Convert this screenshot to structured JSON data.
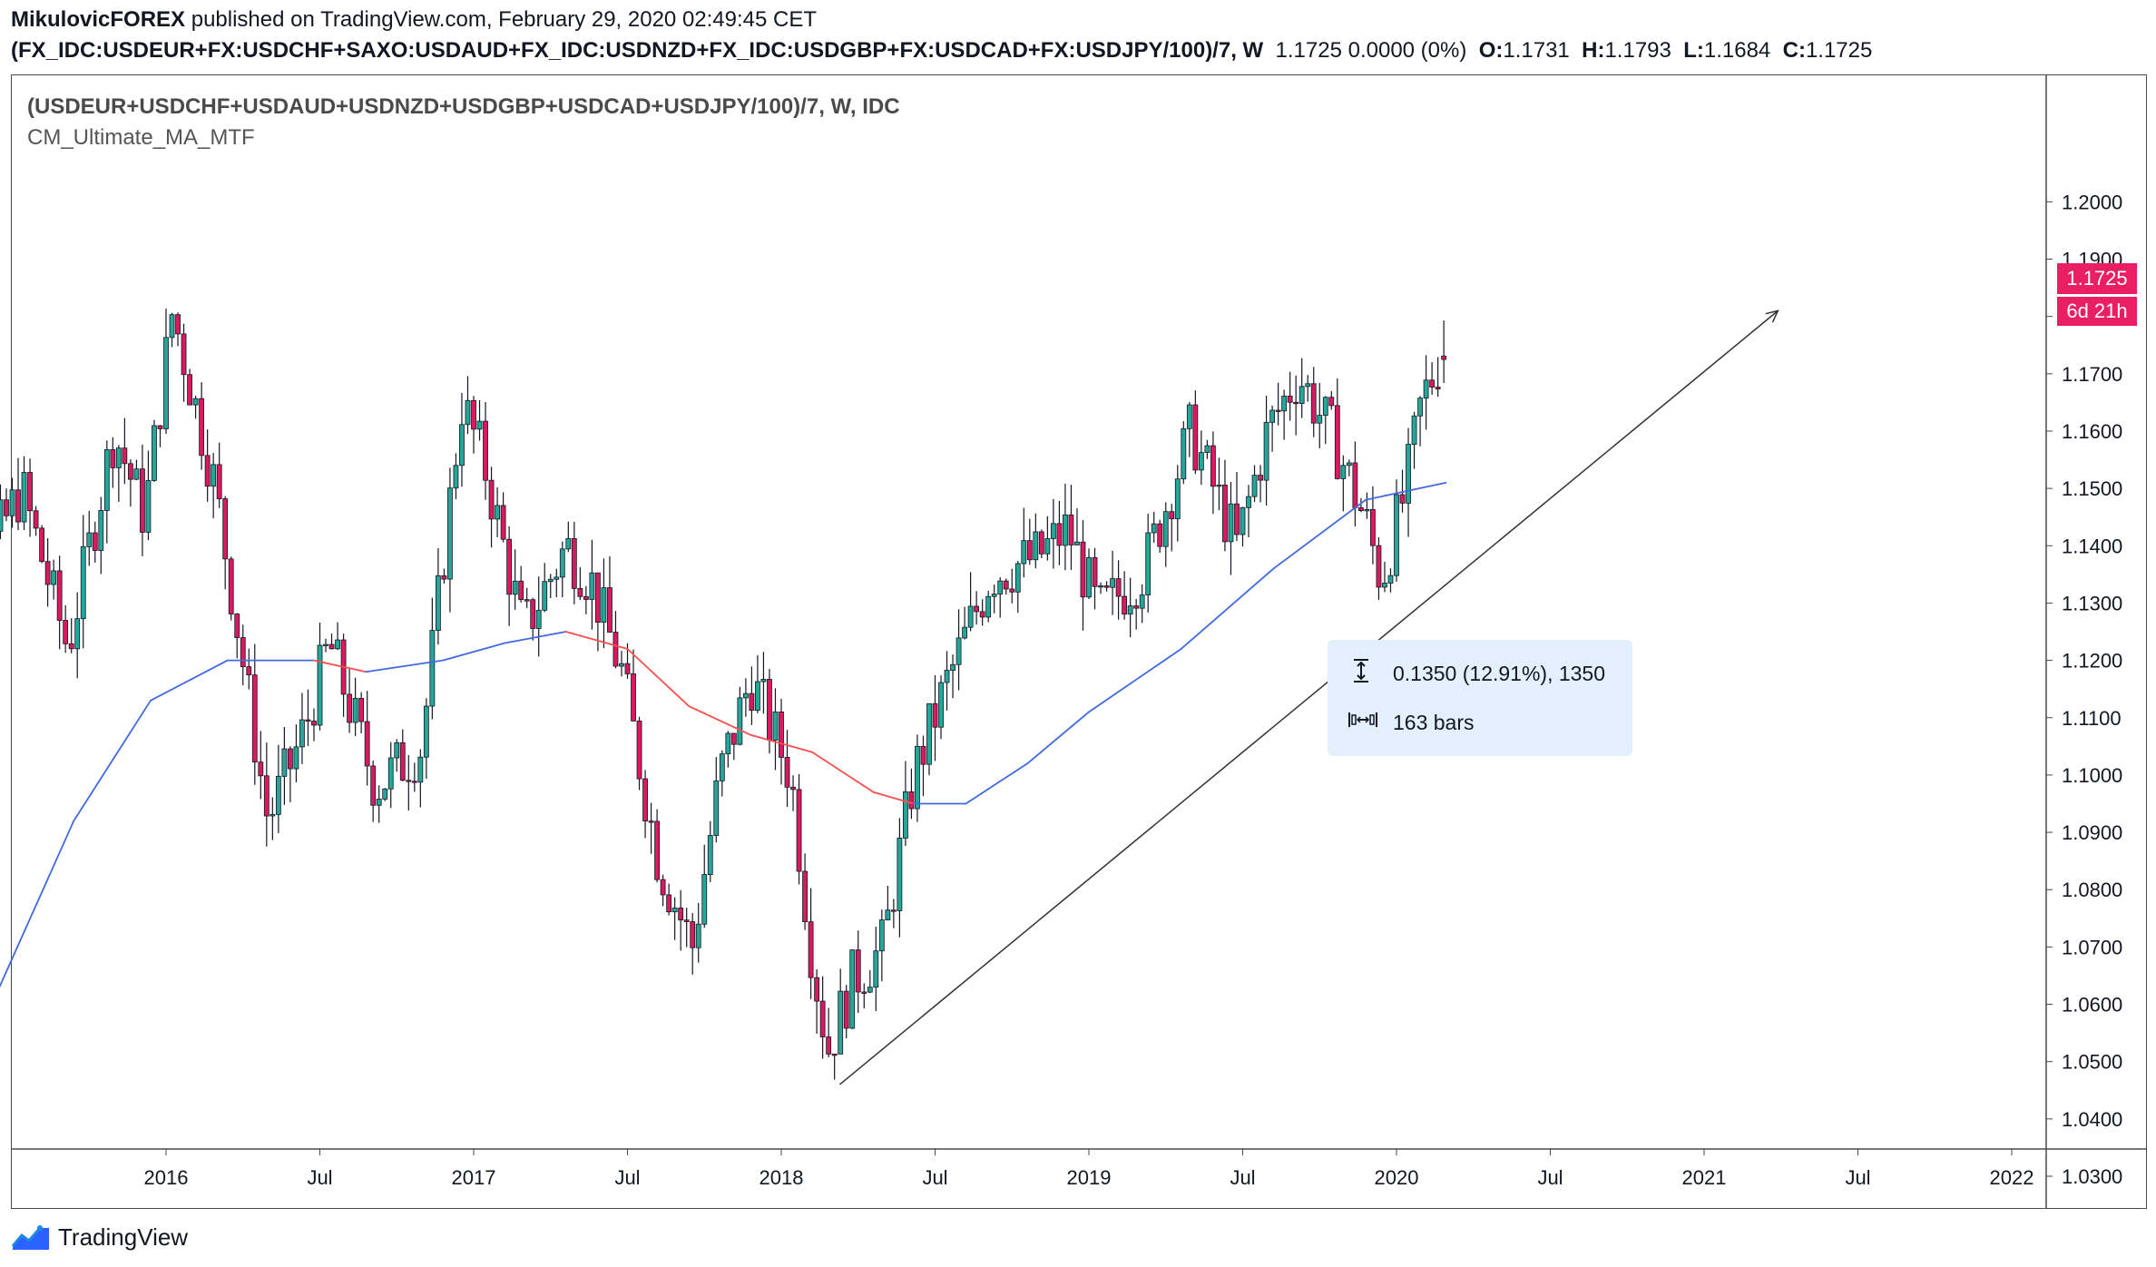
{
  "header": {
    "author": "MikulovicFOREX",
    "published": " published on TradingView.com, February 29, 2020 02:49:45 CET",
    "symbol": "(FX_IDC:USDEUR+FX:USDCHF+SAXO:USDAUD+FX_IDC:USDNZD+FX_IDC:USDGBP+FX:USDCAD+FX:USDJPY/100)/7, W",
    "change": "1.1725 0.0000 (0%)",
    "o_label": "O:",
    "o_value": "1.1731",
    "h_label": "H:",
    "h_value": "1.1793",
    "l_label": "L:",
    "l_value": "1.1684",
    "c_label": "C:",
    "c_value": "1.1725"
  },
  "legend": {
    "title": "(USDEUR+USDCHF+USDAUD+USDNZD+USDGBP+USDCAD+USDJPY/100)/7, W, IDC",
    "indicator": "CM_Ultimate_MA_MTF"
  },
  "measure": {
    "price_change": "0.1350 (12.91%), 1350",
    "bars": "163 bars",
    "price_icon": "vertical-measure-icon",
    "bars_icon": "horizontal-measure-icon"
  },
  "badges": {
    "last_price": "1.1725",
    "countdown": "6d 21h"
  },
  "footer": {
    "brand": "TradingView",
    "logo_icon": "tradingview-logo-icon"
  },
  "colors": {
    "up": "#26a69a",
    "down": "#d81b60",
    "ma_up": "#4169e1",
    "ma_down": "#ff4d4d",
    "trendline": "#333333",
    "badge": "#e91e63"
  },
  "chart_data": {
    "type": "candlestick",
    "timeframe": "W",
    "x_tick_labels": [
      "2016",
      "Jul",
      "2017",
      "Jul",
      "2018",
      "Jul",
      "2019",
      "Jul",
      "2020",
      "Jul",
      "2021",
      "Jul",
      "2022"
    ],
    "y_tick_labels": [
      "1.2000",
      "1.1900",
      "1.1800",
      "1.1700",
      "1.1600",
      "1.1500",
      "1.1400",
      "1.1300",
      "1.1200",
      "1.1100",
      "1.1000",
      "1.0900",
      "1.0800",
      "1.0700",
      "1.0600",
      "1.0500",
      "1.0400",
      "1.0300"
    ],
    "ylim": [
      1.022,
      1.212
    ],
    "last": {
      "open": 1.1731,
      "high": 1.1793,
      "low": 1.1684,
      "close": 1.1725
    },
    "price_path": [
      {
        "x": 2015.25,
        "y": 1.121
      },
      {
        "x": 2015.38,
        "y": 1.132
      },
      {
        "x": 2015.55,
        "y": 1.15
      },
      {
        "x": 2015.7,
        "y": 1.122
      },
      {
        "x": 2015.85,
        "y": 1.16
      },
      {
        "x": 2015.95,
        "y": 1.145
      },
      {
        "x": 2016.04,
        "y": 1.181
      },
      {
        "x": 2016.18,
        "y": 1.15
      },
      {
        "x": 2016.35,
        "y": 1.092
      },
      {
        "x": 2016.47,
        "y": 1.108
      },
      {
        "x": 2016.55,
        "y": 1.123
      },
      {
        "x": 2016.7,
        "y": 1.098
      },
      {
        "x": 2016.85,
        "y": 1.105
      },
      {
        "x": 2016.98,
        "y": 1.165
      },
      {
        "x": 2017.05,
        "y": 1.155
      },
      {
        "x": 2017.18,
        "y": 1.125
      },
      {
        "x": 2017.32,
        "y": 1.14
      },
      {
        "x": 2017.4,
        "y": 1.134
      },
      {
        "x": 2017.5,
        "y": 1.118
      },
      {
        "x": 2017.62,
        "y": 1.085
      },
      {
        "x": 2017.73,
        "y": 1.07
      },
      {
        "x": 2017.82,
        "y": 1.1
      },
      {
        "x": 2017.92,
        "y": 1.117
      },
      {
        "x": 2018.05,
        "y": 1.1
      },
      {
        "x": 2018.12,
        "y": 1.068
      },
      {
        "x": 2018.17,
        "y": 1.052
      },
      {
        "x": 2018.25,
        "y": 1.064
      },
      {
        "x": 2018.35,
        "y": 1.07
      },
      {
        "x": 2018.45,
        "y": 1.1
      },
      {
        "x": 2018.55,
        "y": 1.115
      },
      {
        "x": 2018.7,
        "y": 1.135
      },
      {
        "x": 2018.85,
        "y": 1.138
      },
      {
        "x": 2018.95,
        "y": 1.143
      },
      {
        "x": 2019.05,
        "y": 1.128
      },
      {
        "x": 2019.2,
        "y": 1.136
      },
      {
        "x": 2019.35,
        "y": 1.16
      },
      {
        "x": 2019.5,
        "y": 1.14
      },
      {
        "x": 2019.6,
        "y": 1.16
      },
      {
        "x": 2019.7,
        "y": 1.17
      },
      {
        "x": 2019.82,
        "y": 1.158
      },
      {
        "x": 2019.92,
        "y": 1.144
      },
      {
        "x": 2019.97,
        "y": 1.134
      },
      {
        "x": 2020.05,
        "y": 1.15
      },
      {
        "x": 2020.1,
        "y": 1.165
      },
      {
        "x": 2020.16,
        "y": 1.1725
      }
    ],
    "ma_path": [
      {
        "x": 2015.22,
        "y": 1.036
      },
      {
        "x": 2015.45,
        "y": 1.062
      },
      {
        "x": 2015.7,
        "y": 1.092
      },
      {
        "x": 2015.95,
        "y": 1.113
      },
      {
        "x": 2016.2,
        "y": 1.12
      },
      {
        "x": 2016.48,
        "y": 1.12
      },
      {
        "x": 2016.65,
        "y": 1.118
      },
      {
        "x": 2016.9,
        "y": 1.12
      },
      {
        "x": 2017.1,
        "y": 1.123
      },
      {
        "x": 2017.3,
        "y": 1.125
      },
      {
        "x": 2017.5,
        "y": 1.122
      },
      {
        "x": 2017.7,
        "y": 1.112
      },
      {
        "x": 2017.9,
        "y": 1.107
      },
      {
        "x": 2018.1,
        "y": 1.104
      },
      {
        "x": 2018.3,
        "y": 1.097
      },
      {
        "x": 2018.43,
        "y": 1.095
      },
      {
        "x": 2018.6,
        "y": 1.095
      },
      {
        "x": 2018.8,
        "y": 1.102
      },
      {
        "x": 2019.0,
        "y": 1.111
      },
      {
        "x": 2019.3,
        "y": 1.122
      },
      {
        "x": 2019.6,
        "y": 1.136
      },
      {
        "x": 2019.9,
        "y": 1.148
      },
      {
        "x": 2020.16,
        "y": 1.151
      }
    ],
    "trendline": [
      {
        "x": 2018.19,
        "y": 1.046
      },
      {
        "x": 2021.24,
        "y": 1.181
      }
    ]
  }
}
